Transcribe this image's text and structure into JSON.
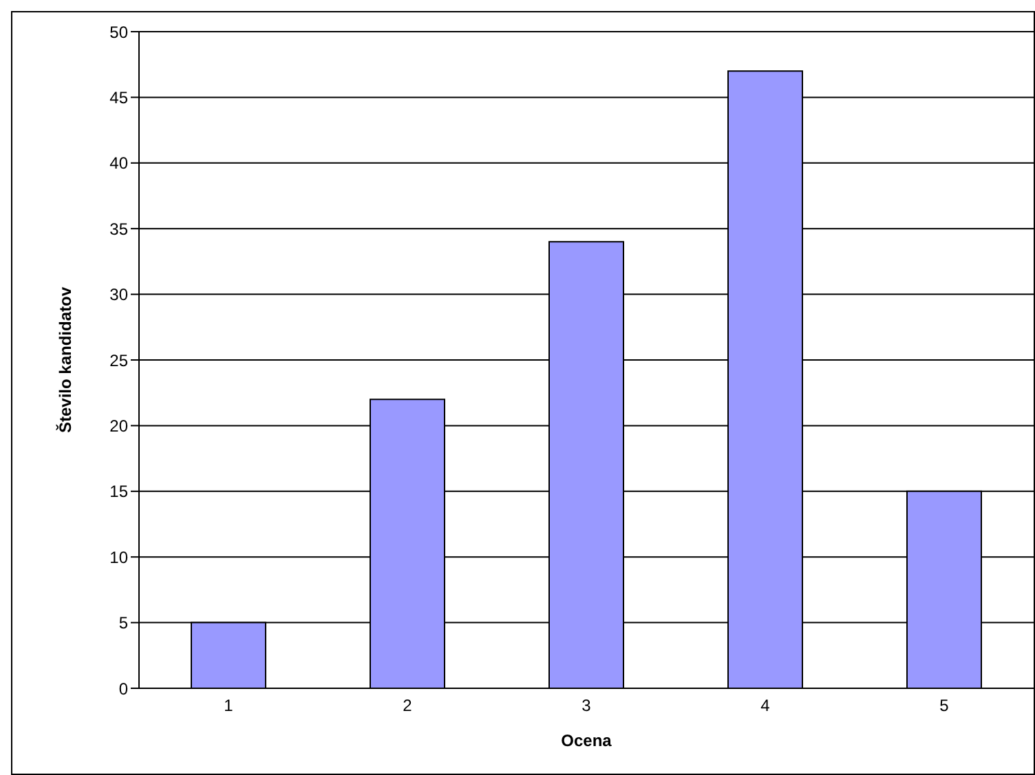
{
  "chart_data": {
    "type": "bar",
    "xlabel": "Ocena",
    "ylabel": "Število kandidatov",
    "categories": [
      "1",
      "2",
      "3",
      "4",
      "5"
    ],
    "values": [
      5,
      22,
      34,
      47,
      15
    ],
    "color": "#9999ff",
    "ylim": [
      0,
      50
    ],
    "yticks": [
      0,
      5,
      10,
      15,
      20,
      25,
      30,
      35,
      40,
      45,
      50
    ],
    "grid": "y"
  }
}
